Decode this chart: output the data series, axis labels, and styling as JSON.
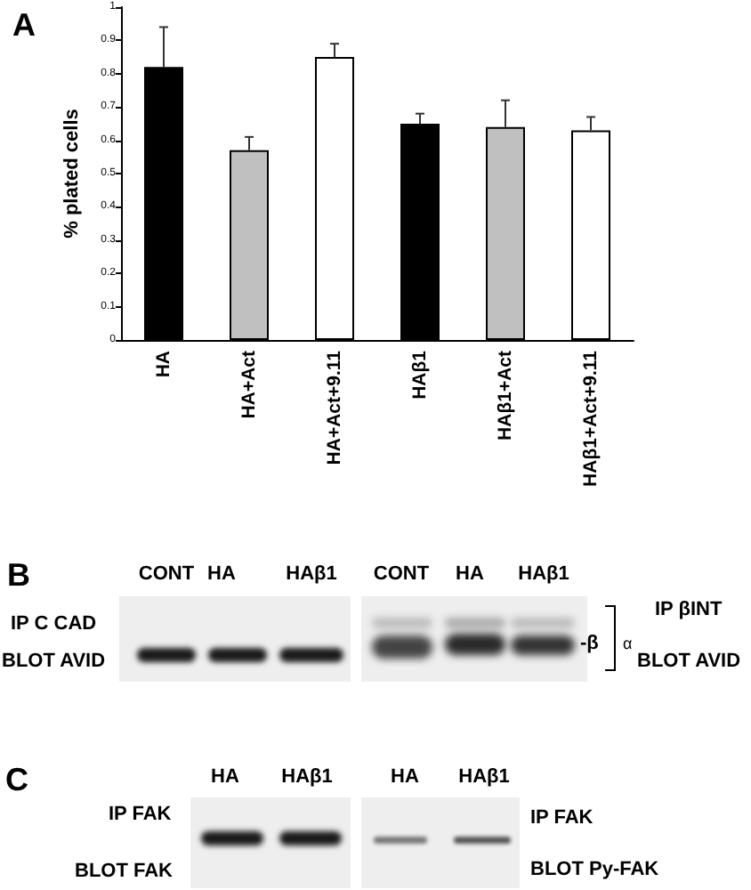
{
  "chart_data": [
    {
      "type": "bar",
      "title": "A",
      "ylabel": "% plated cells",
      "categories": [
        "HA",
        "HA+Act",
        "HA+Act+9.11",
        "HAβ1",
        "HAβ1+Act",
        "HAβ1+Act+9.11"
      ],
      "values": [
        0.82,
        0.57,
        0.85,
        0.65,
        0.64,
        0.63
      ],
      "colors": [
        "#000000",
        "#c0c0c0",
        "#ffffff",
        "#000000",
        "#c0c0c0",
        "#ffffff"
      ],
      "errors": [
        [
          0.82,
          0.94
        ],
        [
          0.57,
          0.61
        ],
        [
          0.85,
          0.89
        ],
        [
          0.65,
          0.68
        ],
        [
          0.64,
          0.72
        ],
        [
          0.63,
          0.67
        ]
      ],
      "ylim": [
        0,
        1
      ],
      "yticks": [
        0,
        0.1,
        0.2,
        0.3,
        0.4,
        0.5,
        0.6,
        0.7,
        0.8,
        0.9,
        1
      ]
    },
    {
      "type": "other",
      "title": "B",
      "annotations": [
        "CONT",
        "HA",
        "HAβ1",
        "CONT",
        "HA",
        "HAβ1",
        "IP C CAD",
        "BLOT AVID",
        "-β",
        "α",
        "IP βINT",
        "BLOT AVID"
      ]
    },
    {
      "type": "other",
      "title": "C",
      "annotations": [
        "HA",
        "HAβ1",
        "HA",
        "HAβ1",
        "IP FAK",
        "BLOT FAK",
        "IP FAK",
        "BLOT Py-FAK"
      ]
    }
  ]
}
